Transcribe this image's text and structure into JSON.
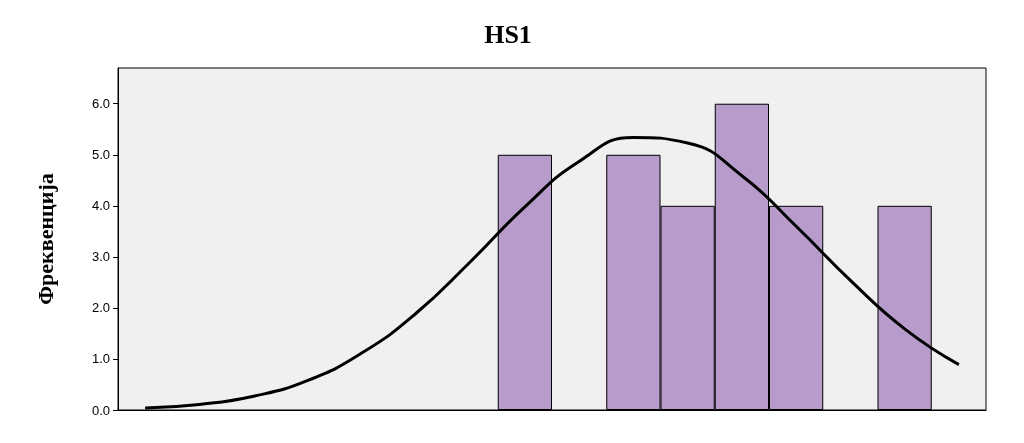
{
  "chart_data": {
    "type": "bar",
    "title": "HS1",
    "ylabel": "Фреквенција",
    "categories": [
      null,
      null,
      null,
      null,
      null,
      null,
      null,
      null,
      null,
      null,
      null,
      null,
      null,
      null,
      null,
      null
    ],
    "series": [
      {
        "color": "#b79bcb",
        "values": [
          null,
          null,
          null,
          null,
          null,
          null,
          null,
          5,
          null,
          5,
          4,
          6,
          4,
          null,
          4,
          null
        ]
      },
      {
        "type": "line",
        "color": "#000000",
        "values": [
          0.04,
          0.11,
          0.27,
          0.58,
          1.12,
          1.9,
          2.91,
          3.98,
          4.87,
          5.34,
          5.23,
          4.59,
          3.6,
          2.54,
          1.59,
          0.89
        ]
      }
    ],
    "ylim": [
      0,
      6.7
    ],
    "yticks": [
      {
        "value": 0,
        "label": "0.0"
      },
      {
        "value": 1,
        "label": "1.0"
      },
      {
        "value": 2,
        "label": "2.0"
      },
      {
        "value": 3,
        "label": "3.0"
      },
      {
        "value": 4,
        "label": "4.0"
      },
      {
        "value": 5,
        "label": "5.0"
      },
      {
        "value": 6,
        "label": "6.0"
      }
    ],
    "grid": false,
    "marker": "none",
    "line_style": "solid"
  }
}
